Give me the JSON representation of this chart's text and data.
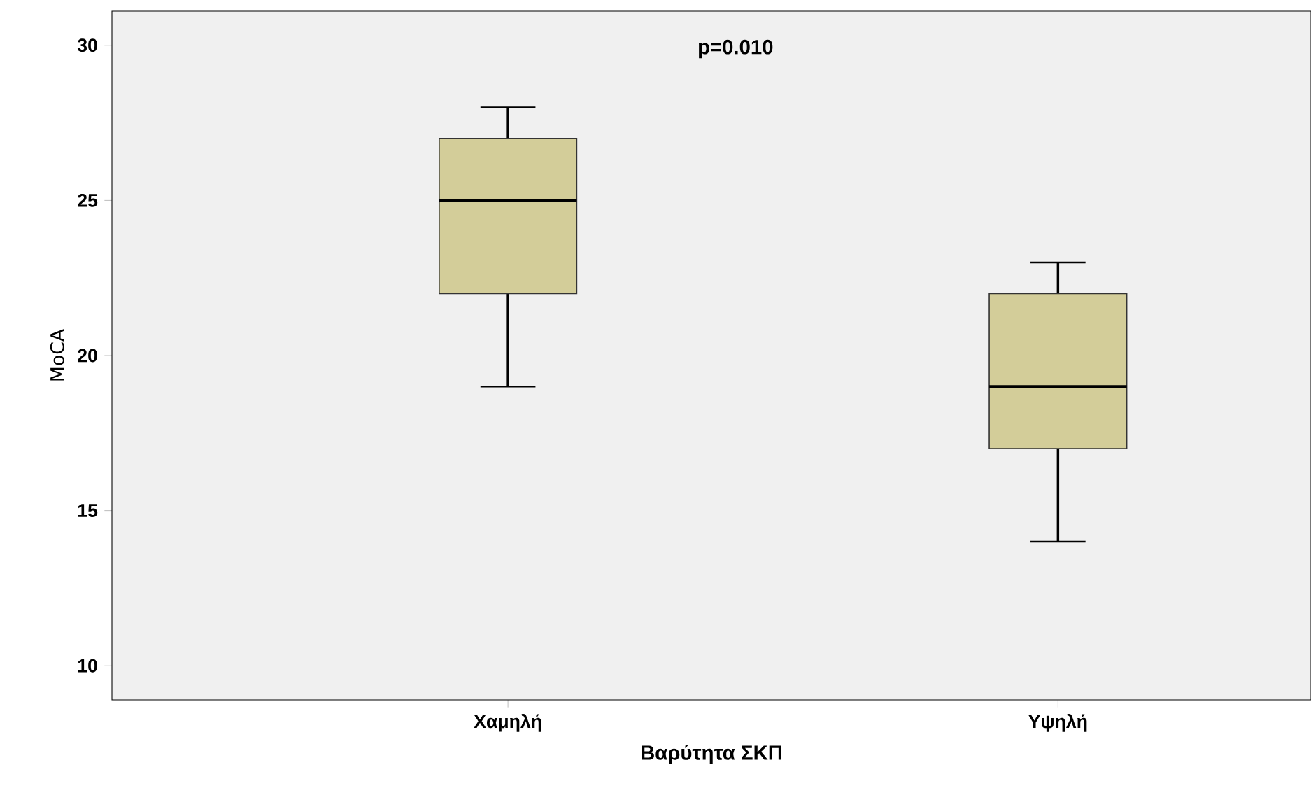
{
  "chart_data": {
    "type": "box",
    "xlabel": "Βαρύτητα ΣΚΠ",
    "ylabel": "MoCA",
    "categories": [
      "Χαμηλή",
      "Υψηλή"
    ],
    "series": [
      {
        "color": "#d3cd99",
        "boxes": [
          {
            "low": 19,
            "q1": 22,
            "median": 25,
            "q3": 27,
            "high": 28
          },
          {
            "low": 14,
            "q1": 17,
            "median": 19,
            "q3": 22,
            "high": 23
          }
        ]
      }
    ],
    "ylim": [
      8.9,
      31.1
    ],
    "yticks": [
      10,
      15,
      20,
      25,
      30
    ],
    "annotations": [
      "p=0.010"
    ]
  }
}
